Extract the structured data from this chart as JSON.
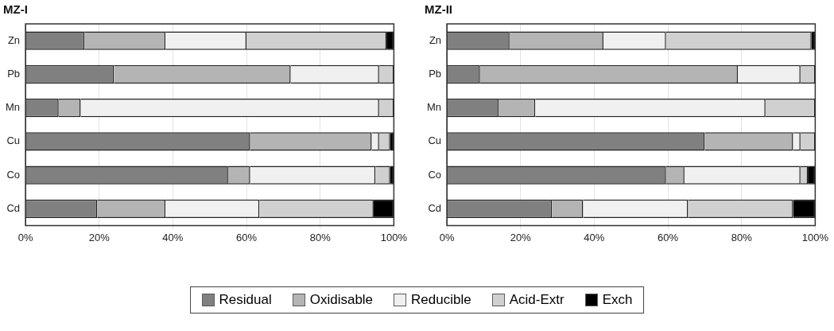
{
  "chart_data": [
    {
      "type": "bar",
      "orientation": "horizontal",
      "stacked": true,
      "title": "MZ-I",
      "categories": [
        "Zn",
        "Pb",
        "Mn",
        "Cu",
        "Co",
        "Cd"
      ],
      "series": [
        {
          "name": "Residual",
          "color": "#808080",
          "values": [
            16,
            24,
            9,
            61,
            55,
            19.5
          ]
        },
        {
          "name": "Oxidisable",
          "color": "#b4b4b4",
          "values": [
            22,
            48,
            6,
            33,
            6,
            18.5
          ]
        },
        {
          "name": "Reducible",
          "color": "#f0f0f0",
          "values": [
            22,
            24,
            81,
            2,
            34,
            25.5
          ]
        },
        {
          "name": "Acid-Extr",
          "color": "#d0d0d0",
          "values": [
            38,
            4,
            4,
            3,
            4,
            31
          ]
        },
        {
          "name": "Exch",
          "color": "#000000",
          "values": [
            2,
            0,
            0,
            1,
            1,
            5.5
          ]
        }
      ],
      "xlim": [
        0,
        100
      ],
      "xticks": [
        {
          "value": 0,
          "label": "0%"
        },
        {
          "value": 20,
          "label": "20%"
        },
        {
          "value": 40,
          "label": "40%"
        },
        {
          "value": 60,
          "label": "60%"
        },
        {
          "value": 80,
          "label": "80%"
        },
        {
          "value": 100,
          "label": "100%"
        }
      ],
      "grid": "x",
      "legend": "bottom"
    },
    {
      "type": "bar",
      "orientation": "horizontal",
      "stacked": true,
      "title": "MZ-II",
      "categories": [
        "Zn",
        "Pb",
        "Mn",
        "Cu",
        "Co",
        "Cd"
      ],
      "series": [
        {
          "name": "Residual",
          "color": "#808080",
          "values": [
            17,
            9,
            14,
            70,
            59.5,
            28.5
          ]
        },
        {
          "name": "Oxidisable",
          "color": "#b4b4b4",
          "values": [
            25.5,
            70,
            10,
            24,
            5,
            8.5
          ]
        },
        {
          "name": "Reducible",
          "color": "#f0f0f0",
          "values": [
            17,
            17,
            62.5,
            2,
            31.5,
            28.5
          ]
        },
        {
          "name": "Acid-Extr",
          "color": "#d0d0d0",
          "values": [
            39.5,
            4,
            13.5,
            4,
            2,
            28.5
          ]
        },
        {
          "name": "Exch",
          "color": "#000000",
          "values": [
            1,
            0,
            0,
            0,
            2,
            6
          ]
        }
      ],
      "xlim": [
        0,
        100
      ],
      "xticks": [
        {
          "value": 0,
          "label": "0%"
        },
        {
          "value": 20,
          "label": "20%"
        },
        {
          "value": 40,
          "label": "40%"
        },
        {
          "value": 60,
          "label": "60%"
        },
        {
          "value": 80,
          "label": "80%"
        },
        {
          "value": 100,
          "label": "100%"
        }
      ],
      "grid": "x",
      "legend": "bottom"
    }
  ]
}
